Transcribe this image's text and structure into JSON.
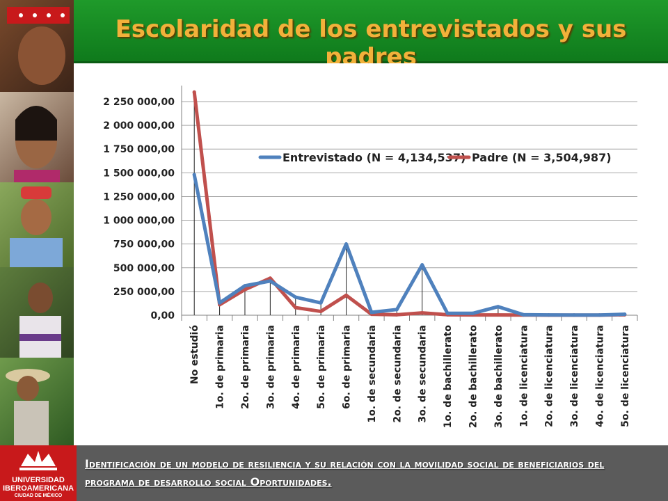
{
  "header": {
    "title": "Escolaridad de los entrevistados y sus padres"
  },
  "footer": {
    "text": "Identificación de un modelo de resiliencia y su relación con la movilidad social de beneficiarios del programa de desarrollo social Oportunidades.",
    "logo_line1": "UNIVERSIDAD",
    "logo_line2": "IBEROAMERICANA",
    "logo_line3": "CIUDAD DE MÉXICO"
  },
  "colors": {
    "header_green": "#138a22",
    "title_gold": "#f2b13a",
    "footer_gray": "#5b5b5b",
    "logo_red": "#c8191b",
    "series_entrevistado": "#4f81bd",
    "series_padre": "#c0504d"
  },
  "chart_data": {
    "type": "line",
    "categories": [
      "No estudió",
      "1o. de primaria",
      "2o. de primaria",
      "3o. de primaria",
      "4o. de primaria",
      "5o. de primaria",
      "6o. de primaria",
      "1o. de secundaria",
      "2o. de secundaria",
      "3o. de secundaria",
      "1o. de bachillerato",
      "2o. de bachillerato",
      "3o. de bachillerato",
      "1o. de licenciatura",
      "2o. de licenciatura",
      "3o. de licenciatura",
      "4o. de licenciatura",
      "5o. de licenciatura"
    ],
    "series": [
      {
        "name": "Entrevistado (N = 4,134,537)",
        "color": "#4f81bd",
        "values": [
          1480000,
          130000,
          310000,
          360000,
          190000,
          130000,
          750000,
          30000,
          60000,
          530000,
          20000,
          20000,
          90000,
          5000,
          3000,
          2000,
          2000,
          10000
        ]
      },
      {
        "name": "Padre (N = 3,504,987)",
        "color": "#c0504d",
        "values": [
          2350000,
          110000,
          270000,
          390000,
          80000,
          40000,
          210000,
          10000,
          5000,
          25000,
          5000,
          3000,
          3000,
          2000,
          1000,
          1000,
          1000,
          5000
        ]
      }
    ],
    "yticks": [
      "0,00",
      "250 000,00",
      "500 000,00",
      "750 000,00",
      "1 000 000,00",
      "1 250 000,00",
      "1 500 000,00",
      "1 750 000,00",
      "2 000 000,00",
      "2 250 000,00"
    ],
    "ylim": [
      0,
      2250000
    ],
    "legend_position": "top-right",
    "grid": true
  }
}
